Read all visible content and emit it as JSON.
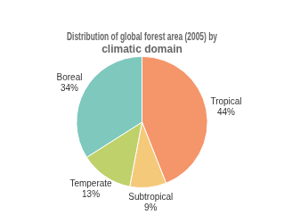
{
  "chart_data": {
    "type": "pie",
    "title": "Distribution of global forest area (2005) by\nclimatic domain",
    "categories": [
      "Tropical",
      "Subtropical",
      "Temperate",
      "Boreal"
    ],
    "values": [
      44,
      9,
      13,
      34
    ],
    "value_labels": [
      "44%",
      "9%",
      "13%",
      "34%"
    ],
    "colors": [
      "#f4956a",
      "#f5c97a",
      "#bfd16a",
      "#7ec8be"
    ],
    "data_labels": true
  }
}
